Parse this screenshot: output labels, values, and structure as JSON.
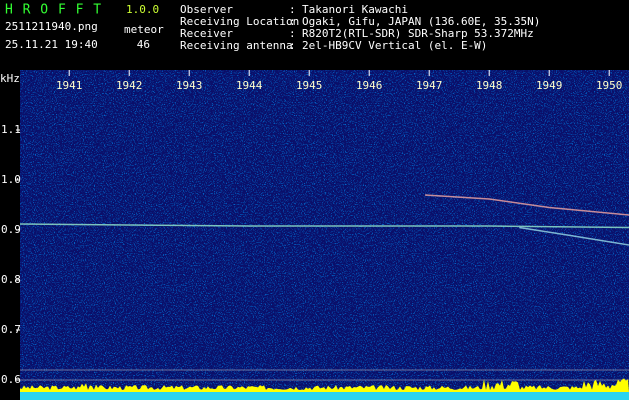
{
  "header": {
    "app": "H R O F F T",
    "version": "1.0.0",
    "file": "2511211940.png",
    "datetime": "25.11.21 19:40",
    "counter_label": "meteor",
    "counter": 46,
    "fields": [
      {
        "label": "Observer",
        "value": "Takanori Kawachi"
      },
      {
        "label": "Receiving Location",
        "value": "Ogaki, Gifu, JAPAN (136.60E, 35.35N)"
      },
      {
        "label": "Receiver",
        "value": "R820T2(RTL-SDR) SDR-Sharp 53.372MHz"
      },
      {
        "label": "Receiving antenna",
        "value": "2el-HB9CV Vertical (el. E-W)"
      }
    ]
  },
  "chart_data": {
    "type": "spectrogram",
    "y_label": "kHz",
    "xlim": [
      1940.18,
      1950.33
    ],
    "xticks": [
      1941,
      1942,
      1943,
      1944,
      1945,
      1946,
      1947,
      1948,
      1949,
      1950
    ],
    "ylim": [
      0.56,
      1.22
    ],
    "yticks": [
      1.1,
      {
        "value": 1,
        "label": "1.0"
      },
      0.9,
      0.8,
      0.7,
      0.6
    ],
    "series": [
      {
        "color": "#8fe0c8",
        "x": [
          1940.18,
          1942,
          1944,
          1946,
          1948,
          1950.33
        ],
        "values": [
          0.912,
          0.91,
          0.908,
          0.908,
          0.908,
          0.905
        ]
      },
      {
        "color": "#e8a0a0",
        "x": [
          1946.93,
          1948,
          1949,
          1950.33
        ],
        "values": [
          0.97,
          0.962,
          0.945,
          0.93
        ]
      },
      {
        "color": "#8fd0e0",
        "x": [
          1948.5,
          1949.3,
          1950.33
        ],
        "values": [
          0.905,
          0.89,
          0.87
        ]
      }
    ]
  }
}
